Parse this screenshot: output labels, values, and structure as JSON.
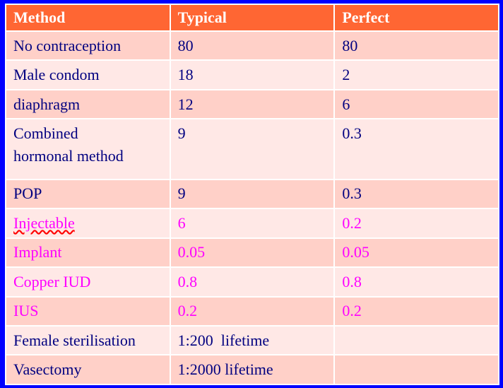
{
  "table": {
    "header": [
      "Method",
      "Typical",
      "Perfect"
    ],
    "rows": [
      [
        "No contraception",
        "80",
        "80"
      ],
      [
        "Male condom",
        "18",
        "2"
      ],
      [
        "diaphragm",
        "12",
        "6"
      ],
      [
        "Combined\nhormonal method",
        "9",
        "0.3"
      ],
      [
        "POP",
        "9",
        "0.3"
      ],
      [
        "Injectable",
        "6",
        "0.2"
      ],
      [
        "Implant",
        "0.05",
        "0.05"
      ],
      [
        "Copper IUD",
        "0.8",
        "0.8"
      ],
      [
        "IUS",
        "0.2",
        "0.2"
      ],
      [
        "Female sterilisation",
        "1:200  lifetime"
      ],
      [
        "Vasectomy",
        "1:2000 lifetime"
      ]
    ],
    "highlight_color": "#ff00ff",
    "highlighted_rows": [
      5,
      6,
      7,
      8
    ]
  }
}
